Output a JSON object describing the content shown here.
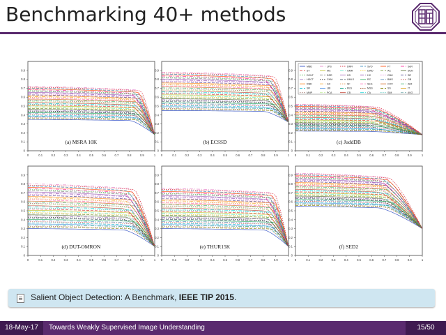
{
  "slide": {
    "title": "Benchmarking 40+ methods",
    "citation_text": "Salient Object Detection: A Benchmark, ",
    "citation_venue": "IEEE TIP 2015",
    "citation_end": "."
  },
  "footer": {
    "date": "18-May-17",
    "talk_title": "Towards Weakly Supervised Image Understanding",
    "page": "15/50"
  },
  "colors": {
    "accent": "#5a2a6e",
    "accent_dark": "#3f1a50",
    "citation_bg": "#cfe6f1"
  },
  "chart_data": [
    {
      "type": "line",
      "title": "(a)  MSRA 10K",
      "xlim": [
        0,
        1
      ],
      "ylim": [
        0,
        1
      ],
      "x_ticks": [
        "0",
        "0.1",
        "0.2",
        "0.3",
        "0.4",
        "0.5",
        "0.6",
        "0.7",
        "0.8",
        "0.9",
        "1"
      ],
      "y_ticks": [
        "0",
        "0.1",
        "0.2",
        "0.3",
        "0.4",
        "0.5",
        "0.6",
        "0.7",
        "0.8",
        "0.9"
      ],
      "curve_family": {
        "start_range": [
          0.35,
          0.72
        ],
        "end": 0.18,
        "knee": 0.85
      }
    },
    {
      "type": "line",
      "title": "(b)  ECSSD",
      "xlim": [
        0,
        1
      ],
      "ylim": [
        0,
        1
      ],
      "x_ticks": [
        "0",
        "0.1",
        "0.2",
        "0.3",
        "0.4",
        "0.5",
        "0.6",
        "0.7",
        "0.8",
        "0.9",
        "1"
      ],
      "y_ticks": [
        "0",
        "0.1",
        "0.2",
        "0.3",
        "0.4",
        "0.5",
        "0.6",
        "0.7",
        "0.8",
        "0.9"
      ],
      "curve_family": {
        "start_range": [
          0.45,
          0.88
        ],
        "end": 0.32,
        "knee": 0.85
      }
    },
    {
      "type": "line",
      "title": "(c)  JuddDB",
      "xlim": [
        0,
        1
      ],
      "ylim": [
        0,
        1
      ],
      "x_ticks": [
        "0",
        "0.1",
        "0.2",
        "0.3",
        "0.4",
        "0.5",
        "0.6",
        "0.7",
        "0.8",
        "0.9",
        "1"
      ],
      "y_ticks": [
        "0",
        "0.1",
        "0.2",
        "0.3",
        "0.4",
        "0.5",
        "0.6",
        "0.7",
        "0.8",
        "0.9"
      ],
      "curve_family": {
        "start_range": [
          0.22,
          0.52
        ],
        "end": 0.18,
        "knee": 0.6
      },
      "legend": [
        "MBD",
        "ST",
        "DCUT",
        "HDCT",
        "RBD",
        "SR",
        "MNP",
        "LPS",
        "MC",
        "DSR",
        "CHM",
        "GC",
        "LBI",
        "PCA",
        "DRFI",
        "GMR",
        "HS",
        "UMLS",
        "SF",
        "FES",
        "CB",
        "SVO",
        "DWD",
        "HC",
        "RC",
        "SEG",
        "MSS",
        "CA",
        "FT",
        "AC",
        "CBU",
        "BMS",
        "COV",
        "SS",
        "SIM",
        "SeR",
        "SUN",
        "SR",
        "GB",
        "AIM",
        "IT",
        "AVG"
      ],
      "legend_position": "top"
    },
    {
      "type": "line",
      "title": "(d)  DUT-OMRON",
      "xlim": [
        0,
        1
      ],
      "ylim": [
        0,
        1
      ],
      "x_ticks": [
        "0",
        "0.1",
        "0.2",
        "0.3",
        "0.4",
        "0.5",
        "0.6",
        "0.7",
        "0.8",
        "0.9",
        "1"
      ],
      "y_ticks": [
        "0",
        "0.1",
        "0.2",
        "0.3",
        "0.4",
        "0.5",
        "0.6",
        "0.7",
        "0.8",
        "0.9"
      ],
      "curve_family": {
        "start_range": [
          0.3,
          0.8
        ],
        "end": 0.1,
        "knee": 0.8
      }
    },
    {
      "type": "line",
      "title": "(e)  THUR15K",
      "xlim": [
        0,
        1
      ],
      "ylim": [
        0,
        1
      ],
      "x_ticks": [
        "0",
        "0.1",
        "0.2",
        "0.3",
        "0.4",
        "0.5",
        "0.6",
        "0.7",
        "0.8",
        "0.9",
        "1"
      ],
      "y_ticks": [
        "0",
        "0.1",
        "0.2",
        "0.3",
        "0.4",
        "0.5",
        "0.6",
        "0.7",
        "0.8",
        "0.9"
      ],
      "curve_family": {
        "start_range": [
          0.3,
          0.75
        ],
        "end": 0.1,
        "knee": 0.85
      }
    },
    {
      "type": "line",
      "title": "(f)  SED2",
      "xlim": [
        0,
        1
      ],
      "ylim": [
        0,
        1
      ],
      "x_ticks": [
        "0",
        "0.1",
        "0.2",
        "0.3",
        "0.4",
        "0.5",
        "0.6",
        "0.7",
        "0.8",
        "0.9",
        "1"
      ],
      "y_ticks": [
        "0",
        "0.1",
        "0.2",
        "0.3",
        "0.4",
        "0.5",
        "0.6",
        "0.7",
        "0.8",
        "0.9"
      ],
      "curve_family": {
        "start_range": [
          0.55,
          0.92
        ],
        "end": 0.3,
        "knee": 0.7
      }
    }
  ]
}
